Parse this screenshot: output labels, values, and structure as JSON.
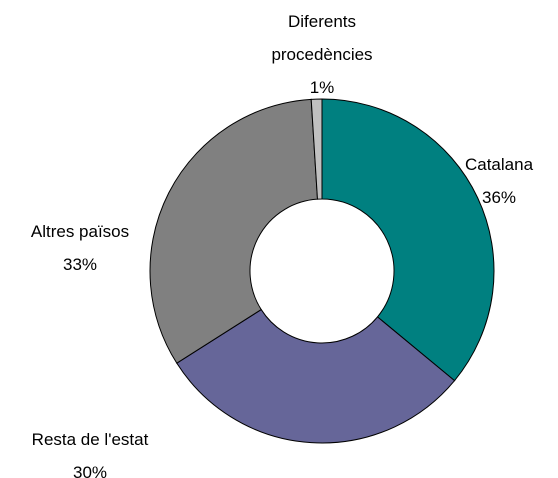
{
  "chart_data": {
    "type": "donut",
    "categories": [
      "Catalana",
      "Resta de l'estat",
      "Altres països",
      "Diferents procedències"
    ],
    "values": [
      36,
      30,
      33,
      1
    ],
    "value_labels": [
      "36%",
      "30%",
      "33%",
      "1%"
    ],
    "colors": [
      "#008080",
      "#666699",
      "#808080",
      "#c0c0c0"
    ]
  }
}
